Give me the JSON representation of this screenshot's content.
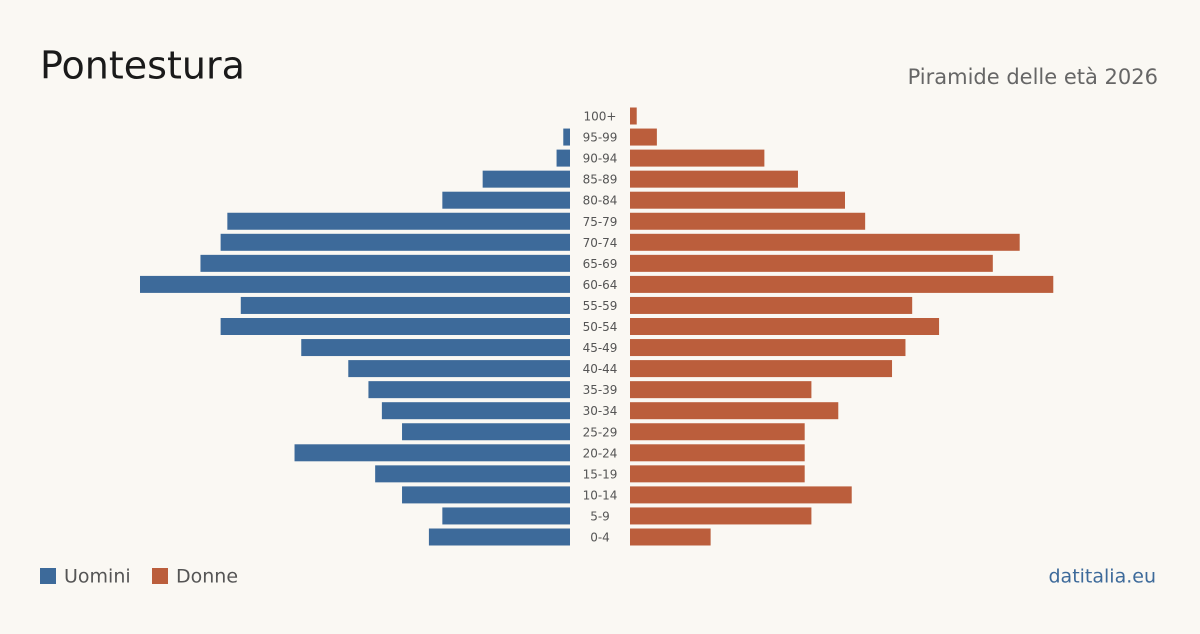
{
  "chart_data": {
    "type": "pyramid",
    "title": "Pontestura",
    "subtitle": "Piramide delle età 2026",
    "source": "datitalia.eu",
    "categories": [
      "0-4",
      "5-9",
      "10-14",
      "15-19",
      "20-24",
      "25-29",
      "30-34",
      "35-39",
      "40-44",
      "45-49",
      "50-54",
      "55-59",
      "60-64",
      "65-69",
      "70-74",
      "75-79",
      "80-84",
      "85-89",
      "90-94",
      "95-99",
      "100+"
    ],
    "series": [
      {
        "name": "Uomini",
        "color": "#3d6a9a",
        "values": [
          21,
          19,
          25,
          29,
          41,
          25,
          28,
          30,
          33,
          40,
          52,
          49,
          64,
          55,
          52,
          51,
          19,
          13,
          2,
          1,
          0
        ]
      },
      {
        "name": "Donne",
        "color": "#bb5e3c",
        "values": [
          12,
          27,
          33,
          26,
          26,
          26,
          31,
          27,
          39,
          41,
          46,
          42,
          63,
          54,
          58,
          35,
          32,
          25,
          20,
          4,
          1
        ]
      }
    ],
    "xlim": [
      0,
      64
    ]
  }
}
